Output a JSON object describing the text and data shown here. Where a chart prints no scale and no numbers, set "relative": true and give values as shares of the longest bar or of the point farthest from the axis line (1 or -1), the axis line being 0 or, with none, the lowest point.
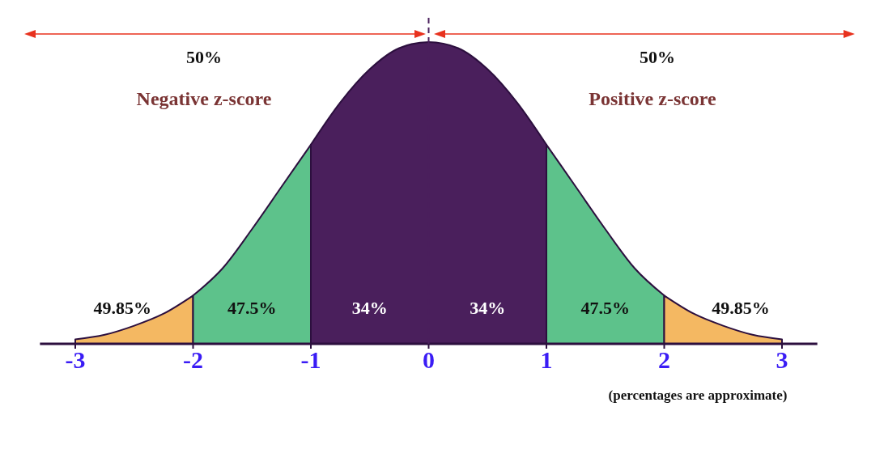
{
  "chart_data": {
    "type": "area",
    "relative": true,
    "xlim": [
      -3.3,
      3.3
    ],
    "xticks": [
      -3,
      -2,
      -1,
      0,
      1,
      2,
      3
    ],
    "series": [
      {
        "color": "#f4b862",
        "x": [
          -3,
          -2.75,
          -2.5,
          -2.25,
          -2
        ],
        "values": [
          0.015,
          0.03,
          0.06,
          0.1,
          0.16
        ]
      },
      {
        "color": "#5dc28b",
        "x": [
          -2,
          -1.75,
          -1.5,
          -1.25,
          -1
        ],
        "values": [
          0.16,
          0.25,
          0.38,
          0.52,
          0.66
        ]
      },
      {
        "color": "#4a1f5c",
        "x": [
          -1,
          -0.75,
          -0.5,
          -0.25,
          0,
          0.25,
          0.5,
          0.75,
          1
        ],
        "values": [
          0.66,
          0.8,
          0.91,
          0.98,
          1,
          0.98,
          0.91,
          0.8,
          0.66
        ]
      },
      {
        "color": "#5dc28b",
        "x": [
          1,
          1.25,
          1.5,
          1.75,
          2
        ],
        "values": [
          0.66,
          0.52,
          0.38,
          0.25,
          0.16
        ]
      },
      {
        "color": "#f4b862",
        "x": [
          2,
          2.25,
          2.5,
          2.75,
          3
        ],
        "values": [
          0.16,
          0.1,
          0.06,
          0.03,
          0.015
        ]
      }
    ],
    "ref_lines": [
      {
        "axis": "x",
        "value": 0,
        "color": "#4a1f5c",
        "line_style": "dashed"
      }
    ],
    "annotations": [
      "49.85%",
      "47.5%",
      "34%",
      "34%",
      "47.5%",
      "49.85%",
      "50%",
      "Negative z-score",
      "50%",
      "Positive z-score",
      "(percentages are approximate)"
    ]
  }
}
